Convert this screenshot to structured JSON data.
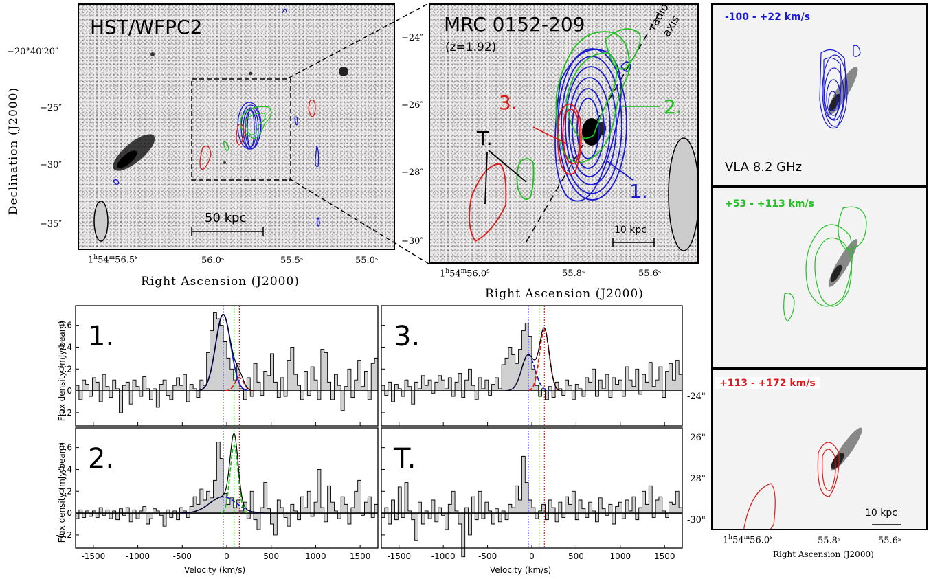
{
  "panel_a": {
    "label": "HST/WFPC2",
    "scalebar": "50 kpc",
    "ylabel": "Declination (J2000)",
    "xlabel": "Right Ascension (J2000)",
    "yticks": [
      "−20°40′20″",
      "−25″",
      "−30″",
      "−35″"
    ],
    "xticks": [
      "56.0ˢ",
      "55.5ˢ",
      "55.0ˢ"
    ],
    "xtick_first_h": "1",
    "xtick_first_h_sup": "h",
    "xtick_first_m": "54",
    "xtick_first_m_sup": "m",
    "xtick_first_s": "56.5",
    "xtick_first_s_sup": "s"
  },
  "panel_b": {
    "label": "MRC 0152-209",
    "redshift": "(z=1.92)",
    "axis_note_1": "radio",
    "axis_note_2": "axis",
    "region_1": "1.",
    "region_2": "2.",
    "region_3": "3.",
    "region_t": "T.",
    "scalebar": "10 kpc",
    "xlabel": "Right Ascension (J2000)",
    "yticks": [
      "−24″",
      "−26″",
      "−28″",
      "−30″"
    ],
    "xtick_first_h": "1",
    "xtick_first_h_sup": "h",
    "xtick_first_m": "54",
    "xtick_first_m_sup": "m",
    "xtick_first_s": "56.0",
    "xtick_first_s_sup": "s",
    "xticks": [
      "55.8ˢ",
      "55.6ˢ"
    ]
  },
  "right_panels": {
    "top_label": "-100 - +22 km/s",
    "top_note": "VLA 8.2 GHz",
    "mid_label": "+53 - +113 km/s",
    "bot_label": "+113 - +172 km/s",
    "bot_scalebar": "10 kpc",
    "yticks": [
      "-24\"",
      "-26\"",
      "-28\"",
      "-30\""
    ],
    "xtick_first_h": "1",
    "xtick_first_h_sup": "h",
    "xtick_first_m": "54",
    "xtick_first_m_sup": "m",
    "xtick_first_s": "56.0",
    "xtick_first_s_sup": "s",
    "xticks": [
      "55.8ˢ",
      "55.6ˢ"
    ],
    "xlabel": "Right Ascension (J2000)"
  },
  "colors": {
    "blue": "#1a1ad6",
    "green": "#22c022",
    "red": "#e01818"
  },
  "chart_data": {
    "type": "line",
    "xlabel": "Velocity (km/s)",
    "ylabel": "Flux density (mJy/beam)",
    "xlim": [
      -1700,
      1700
    ],
    "ylim": [
      -0.32,
      0.78
    ],
    "xticks": [
      -1500,
      -1000,
      -500,
      0,
      500,
      1000,
      1500
    ],
    "yticks": [
      -0.2,
      0,
      0.2,
      0.4,
      0.6
    ],
    "vlines": {
      "blue": -40,
      "green": 83,
      "red": 142
    },
    "panels": [
      {
        "label": "1.",
        "fits": [
          {
            "color": "blue",
            "amp": 0.7,
            "mu": -40,
            "sigma": 85
          },
          {
            "color": "red",
            "amp": 0.12,
            "mu": 142,
            "sigma": 50
          }
        ],
        "y": [
          0.05,
          -0.08,
          0.1,
          0.06,
          -0.05,
          0.12,
          0.08,
          -0.1,
          0.15,
          0.04,
          -0.06,
          0.1,
          0.02,
          -0.2,
          0.05,
          0.08,
          -0.12,
          0.1,
          0.04,
          -0.05,
          0.13,
          0.02,
          -0.08,
          0.02,
          -0.15,
          0.06,
          0.1,
          -0.04,
          -0.08,
          0.05,
          0.12,
          0.05,
          0.15,
          -0.1,
          0.06,
          0.02,
          -0.06,
          0.1,
          0.05,
          0.35,
          0.55,
          0.72,
          0.66,
          0.6,
          0.45,
          0.3,
          0.2,
          0.1,
          0.25,
          0.02,
          -0.08,
          0.12,
          -0.05,
          0.25,
          0.08,
          -0.04,
          0.18,
          0.14,
          0.34,
          0.08,
          -0.06,
          0.12,
          -0.05,
          0.28,
          0.4,
          0.15,
          0.05,
          -0.08,
          0.18,
          -0.04,
          0.22,
          0.1,
          -0.08,
          0.38,
          0.35,
          0.08,
          -0.08,
          0.15,
          0.05,
          -0.18,
          0.04,
          0.2,
          -0.06,
          0.1,
          0.28,
          0.04,
          0.18,
          -0.08,
          0.25,
          0.3
        ]
      },
      {
        "label": "3.",
        "fits": [
          {
            "color": "blue",
            "amp": 0.33,
            "mu": -40,
            "sigma": 75
          },
          {
            "color": "red",
            "amp": 0.56,
            "mu": 142,
            "sigma": 55
          }
        ],
        "y": [
          0.05,
          -0.04,
          0.08,
          -0.1,
          0.06,
          0.02,
          -0.05,
          0.1,
          0.04,
          -0.12,
          0.08,
          0.02,
          0.14,
          0.05,
          0.1,
          -0.02,
          0.08,
          0.14,
          0.1,
          0.02,
          0.12,
          -0.05,
          0.08,
          0.16,
          -0.06,
          0.1,
          0.2,
          0.05,
          -0.08,
          0.12,
          0.02,
          0.1,
          -0.04,
          0.06,
          0.12,
          0.02,
          0.24,
          0.3,
          0.4,
          0.33,
          0.25,
          0.38,
          0.55,
          0.62,
          0.5,
          0.2,
          0.05,
          -0.05,
          0.02,
          -0.08,
          0.04,
          -0.06,
          0.08,
          0.02,
          -0.04,
          0.1,
          0.05,
          -0.08,
          0.06,
          0.02,
          -0.05,
          0.12,
          0.08,
          0.2,
          -0.05,
          0.1,
          0.02,
          0.15,
          -0.06,
          0.12,
          0.06,
          0.1,
          -0.05,
          0.22,
          0.1,
          0.04,
          0.2,
          -0.03,
          0.15,
          0.08,
          0.26,
          0.04,
          0.1,
          0.22,
          -0.06,
          0.18,
          0.25,
          0.1,
          0.28,
          0.15
        ]
      },
      {
        "label": "2.",
        "fits": [
          {
            "color": "blue",
            "amp": 0.15,
            "mu": -40,
            "sigma": 150
          },
          {
            "color": "green",
            "amp": 0.62,
            "mu": 83,
            "sigma": 45
          }
        ],
        "y": [
          -0.05,
          0.03,
          -0.04,
          0.02,
          -0.03,
          0.02,
          -0.04,
          0.05,
          -0.02,
          0.03,
          -0.05,
          0.02,
          -0.06,
          0.04,
          -0.02,
          0.05,
          -0.08,
          0.03,
          -0.05,
          0.02,
          0.06,
          -0.1,
          -0.05,
          0.04,
          0.02,
          -0.02,
          -0.12,
          0.03,
          -0.04,
          0.02,
          -0.06,
          0.05,
          0.02,
          -0.04,
          0.06,
          0.15,
          0.08,
          0.22,
          0.12,
          0.2,
          0.14,
          0.3,
          0.65,
          0.5,
          0.18,
          0.08,
          0.14,
          0.05,
          0.12,
          0.02,
          0.1,
          -0.05,
          0.2,
          -0.06,
          -0.15,
          0.05,
          0.28,
          0.04,
          -0.1,
          -0.2,
          0.12,
          0.05,
          -0.04,
          -0.12,
          0.08,
          0.02,
          -0.06,
          0.15,
          0.05,
          0.2,
          -0.03,
          0.1,
          0.4,
          0.05,
          -0.08,
          0.25,
          0.1,
          0.02,
          -0.05,
          0.15,
          0.08,
          -0.1,
          0.05,
          0.2,
          0.3,
          -0.02,
          0.1,
          0.15,
          -0.04,
          0.08
        ]
      },
      {
        "label": "T.",
        "fits": [],
        "y": [
          -0.04,
          0.05,
          -0.1,
          0.12,
          -0.06,
          0.24,
          -0.04,
          0.28,
          0.02,
          -0.06,
          -0.25,
          0.1,
          -0.1,
          0.02,
          -0.05,
          0.12,
          -0.08,
          0.05,
          -0.02,
          -0.15,
          0.08,
          0.2,
          0.02,
          -0.1,
          -0.4,
          0.05,
          -0.2,
          0.15,
          -0.06,
          0.2,
          -0.05,
          0.1,
          0.02,
          -0.1,
          0.04,
          -0.08,
          0.02,
          -0.06,
          0.08,
          0.05,
          0.25,
          0.12,
          0.52,
          0.28,
          0.12,
          0.05,
          -0.05,
          0.02,
          0.08,
          -0.06,
          0.12,
          0.05,
          -0.08,
          0.1,
          -0.04,
          0.15,
          0.08,
          0.2,
          -0.06,
          0.12,
          0.04,
          -0.04,
          0.1,
          0.02,
          -0.08,
          0.14,
          0.04,
          -0.02,
          0.08,
          -0.1,
          0.06,
          0.1,
          -0.05,
          0.12,
          0.02,
          0.15,
          -0.06,
          0.05,
          0.2,
          0.08,
          0.25,
          -0.04,
          0.12,
          0.15,
          0.02,
          -0.04,
          0.1,
          0.08,
          0.2,
          0.05
        ]
      }
    ]
  }
}
